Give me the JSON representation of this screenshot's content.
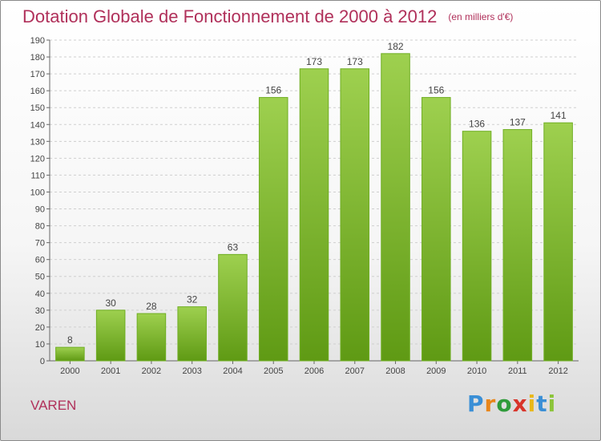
{
  "title": "Dotation Globale de Fonctionnement de 2000 à 2012",
  "subtitle": "(en milliers d'€)",
  "commune": "VAREN",
  "logo": {
    "letters": [
      "P",
      "r",
      "o",
      "x",
      "i",
      "t",
      "i"
    ],
    "colors": [
      "#3a8fd6",
      "#e8861a",
      "#2f9b3a",
      "#d8342a",
      "#e8b81a",
      "#3a8fd6",
      "#8cc43a"
    ]
  },
  "colors": {
    "bar_top": "#9ed04f",
    "bar_bottom": "#5f9a14",
    "accent": "#b0305a",
    "grid": "#cfcfcf"
  },
  "chart_data": {
    "type": "bar",
    "categories": [
      "2000",
      "2001",
      "2002",
      "2003",
      "2004",
      "2005",
      "2006",
      "2007",
      "2008",
      "2009",
      "2010",
      "2011",
      "2012"
    ],
    "values": [
      8,
      30,
      28,
      32,
      63,
      156,
      173,
      173,
      182,
      156,
      136,
      137,
      141
    ],
    "ylim": [
      0,
      190
    ],
    "yticks": [
      0,
      10,
      20,
      30,
      40,
      50,
      60,
      70,
      80,
      90,
      100,
      110,
      120,
      130,
      140,
      150,
      160,
      170,
      180,
      190
    ],
    "grid": true,
    "data_labels": true
  }
}
